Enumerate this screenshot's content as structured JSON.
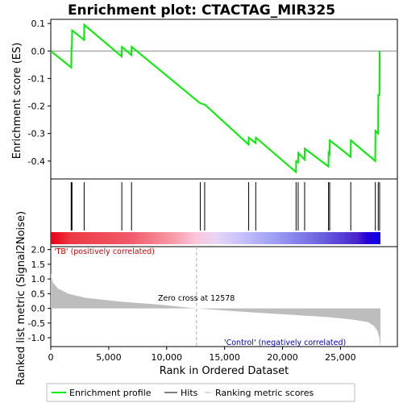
{
  "chart_data": {
    "type": "line",
    "title": "Enrichment plot: CTACTAG_MIR325",
    "xlabel": "Rank in Ordered Dataset",
    "xlim": [
      0,
      29000
    ],
    "x_ticks": [
      0,
      5000,
      10000,
      15000,
      20000,
      25000
    ],
    "x_tick_labels": [
      "0",
      "5,000",
      "10,000",
      "15,000",
      "20,000",
      "25,000"
    ],
    "es_panel": {
      "ylabel": "Enrichment score (ES)",
      "ylim": [
        -0.465,
        0.115
      ],
      "y_ticks": [
        0.1,
        0.0,
        -0.1,
        -0.2,
        -0.3,
        -0.4
      ],
      "y_tick_labels": [
        "0.1",
        "0.0",
        "-0.1",
        "-0.2",
        "-0.3",
        "-0.4"
      ],
      "color": "#00ee00",
      "series": {
        "x": [
          0,
          1760,
          1790,
          1820,
          1840,
          2870,
          2890,
          6120,
          6140,
          6960,
          6980,
          12890,
          12910,
          13270,
          13290,
          17070,
          17090,
          17680,
          17700,
          21160,
          21180,
          21340,
          21360,
          21900,
          21920,
          23960,
          23980,
          24060,
          24080,
          25880,
          25900,
          28000,
          28020,
          28250,
          28270,
          28370,
          28390
        ],
        "y": [
          0.0,
          -0.06,
          0.01,
          0.01,
          0.075,
          0.04,
          0.095,
          -0.02,
          0.015,
          -0.015,
          0.015,
          -0.19,
          -0.19,
          -0.195,
          -0.195,
          -0.34,
          -0.315,
          -0.335,
          -0.315,
          -0.44,
          -0.4,
          -0.405,
          -0.37,
          -0.395,
          -0.355,
          -0.42,
          -0.37,
          -0.375,
          -0.325,
          -0.385,
          -0.325,
          -0.4,
          -0.29,
          -0.3,
          -0.16,
          -0.16,
          0.0
        ]
      }
    },
    "hits": [
      1760,
      1800,
      1830,
      2880,
      6130,
      6970,
      12900,
      13280,
      17080,
      17690,
      21170,
      21350,
      21910,
      23970,
      24070,
      25890,
      28010,
      28260,
      28380
    ],
    "ranking_panel": {
      "ylabel": "Ranked list metric (Signal2Noise)",
      "ylim": [
        -1.3,
        2.1
      ],
      "y_ticks": [
        2.0,
        1.5,
        1.0,
        0.5,
        0.0,
        -0.5,
        -1.0
      ],
      "y_tick_labels": [
        "2.0",
        "1.5",
        "1.0",
        "0.5",
        "0.0",
        "-0.5",
        "-1.0"
      ],
      "metric_x": [
        0,
        150,
        600,
        1500,
        3000,
        6000,
        9000,
        12578,
        16000,
        20000,
        24000,
        26000,
        27400,
        27900,
        28200,
        28350,
        28420,
        28450
      ],
      "metric_y": [
        1.2,
        0.9,
        0.68,
        0.5,
        0.36,
        0.23,
        0.14,
        0.0,
        -0.1,
        -0.2,
        -0.3,
        -0.38,
        -0.47,
        -0.6,
        -0.77,
        -0.98,
        -1.25,
        -1.25
      ],
      "zero_cross_label": "Zero cross at 12578",
      "zero_cross_x": 12578,
      "positive_label": "'TB' (positively correlated)",
      "negative_label": "'Control' (negatively correlated)"
    },
    "legend": {
      "placement": "bottom",
      "items": [
        {
          "label": "Enrichment profile",
          "color": "#00ee00"
        },
        {
          "label": "Hits",
          "color": "#000000"
        },
        {
          "label": "Ranking metric scores",
          "color": "#bbbbbb"
        }
      ]
    }
  }
}
